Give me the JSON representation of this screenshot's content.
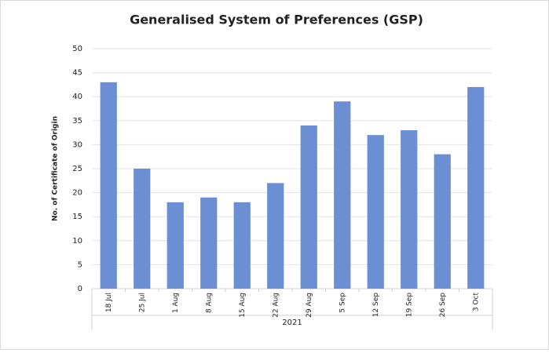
{
  "chart_data": {
    "type": "bar",
    "title": "Generalised System of Preferences (GSP)",
    "y_label": "No. of Certificate of Origin",
    "x_group_label": "2021",
    "categories": [
      "18 Jul",
      "25 Jul",
      "1 Aug",
      "8 Aug",
      "15 Aug",
      "22 Aug",
      "29 Aug",
      "5 Sep",
      "12 Sep",
      "19 Sep",
      "26 Sep",
      "3 Oct"
    ],
    "values": [
      43,
      25,
      18,
      19,
      18,
      22,
      34,
      39,
      32,
      33,
      28,
      42
    ],
    "color": "#6b8fd2",
    "ylim": [
      0,
      50
    ],
    "yticks": [
      0,
      5,
      10,
      15,
      20,
      25,
      30,
      35,
      40,
      45,
      50
    ],
    "grid": true
  }
}
